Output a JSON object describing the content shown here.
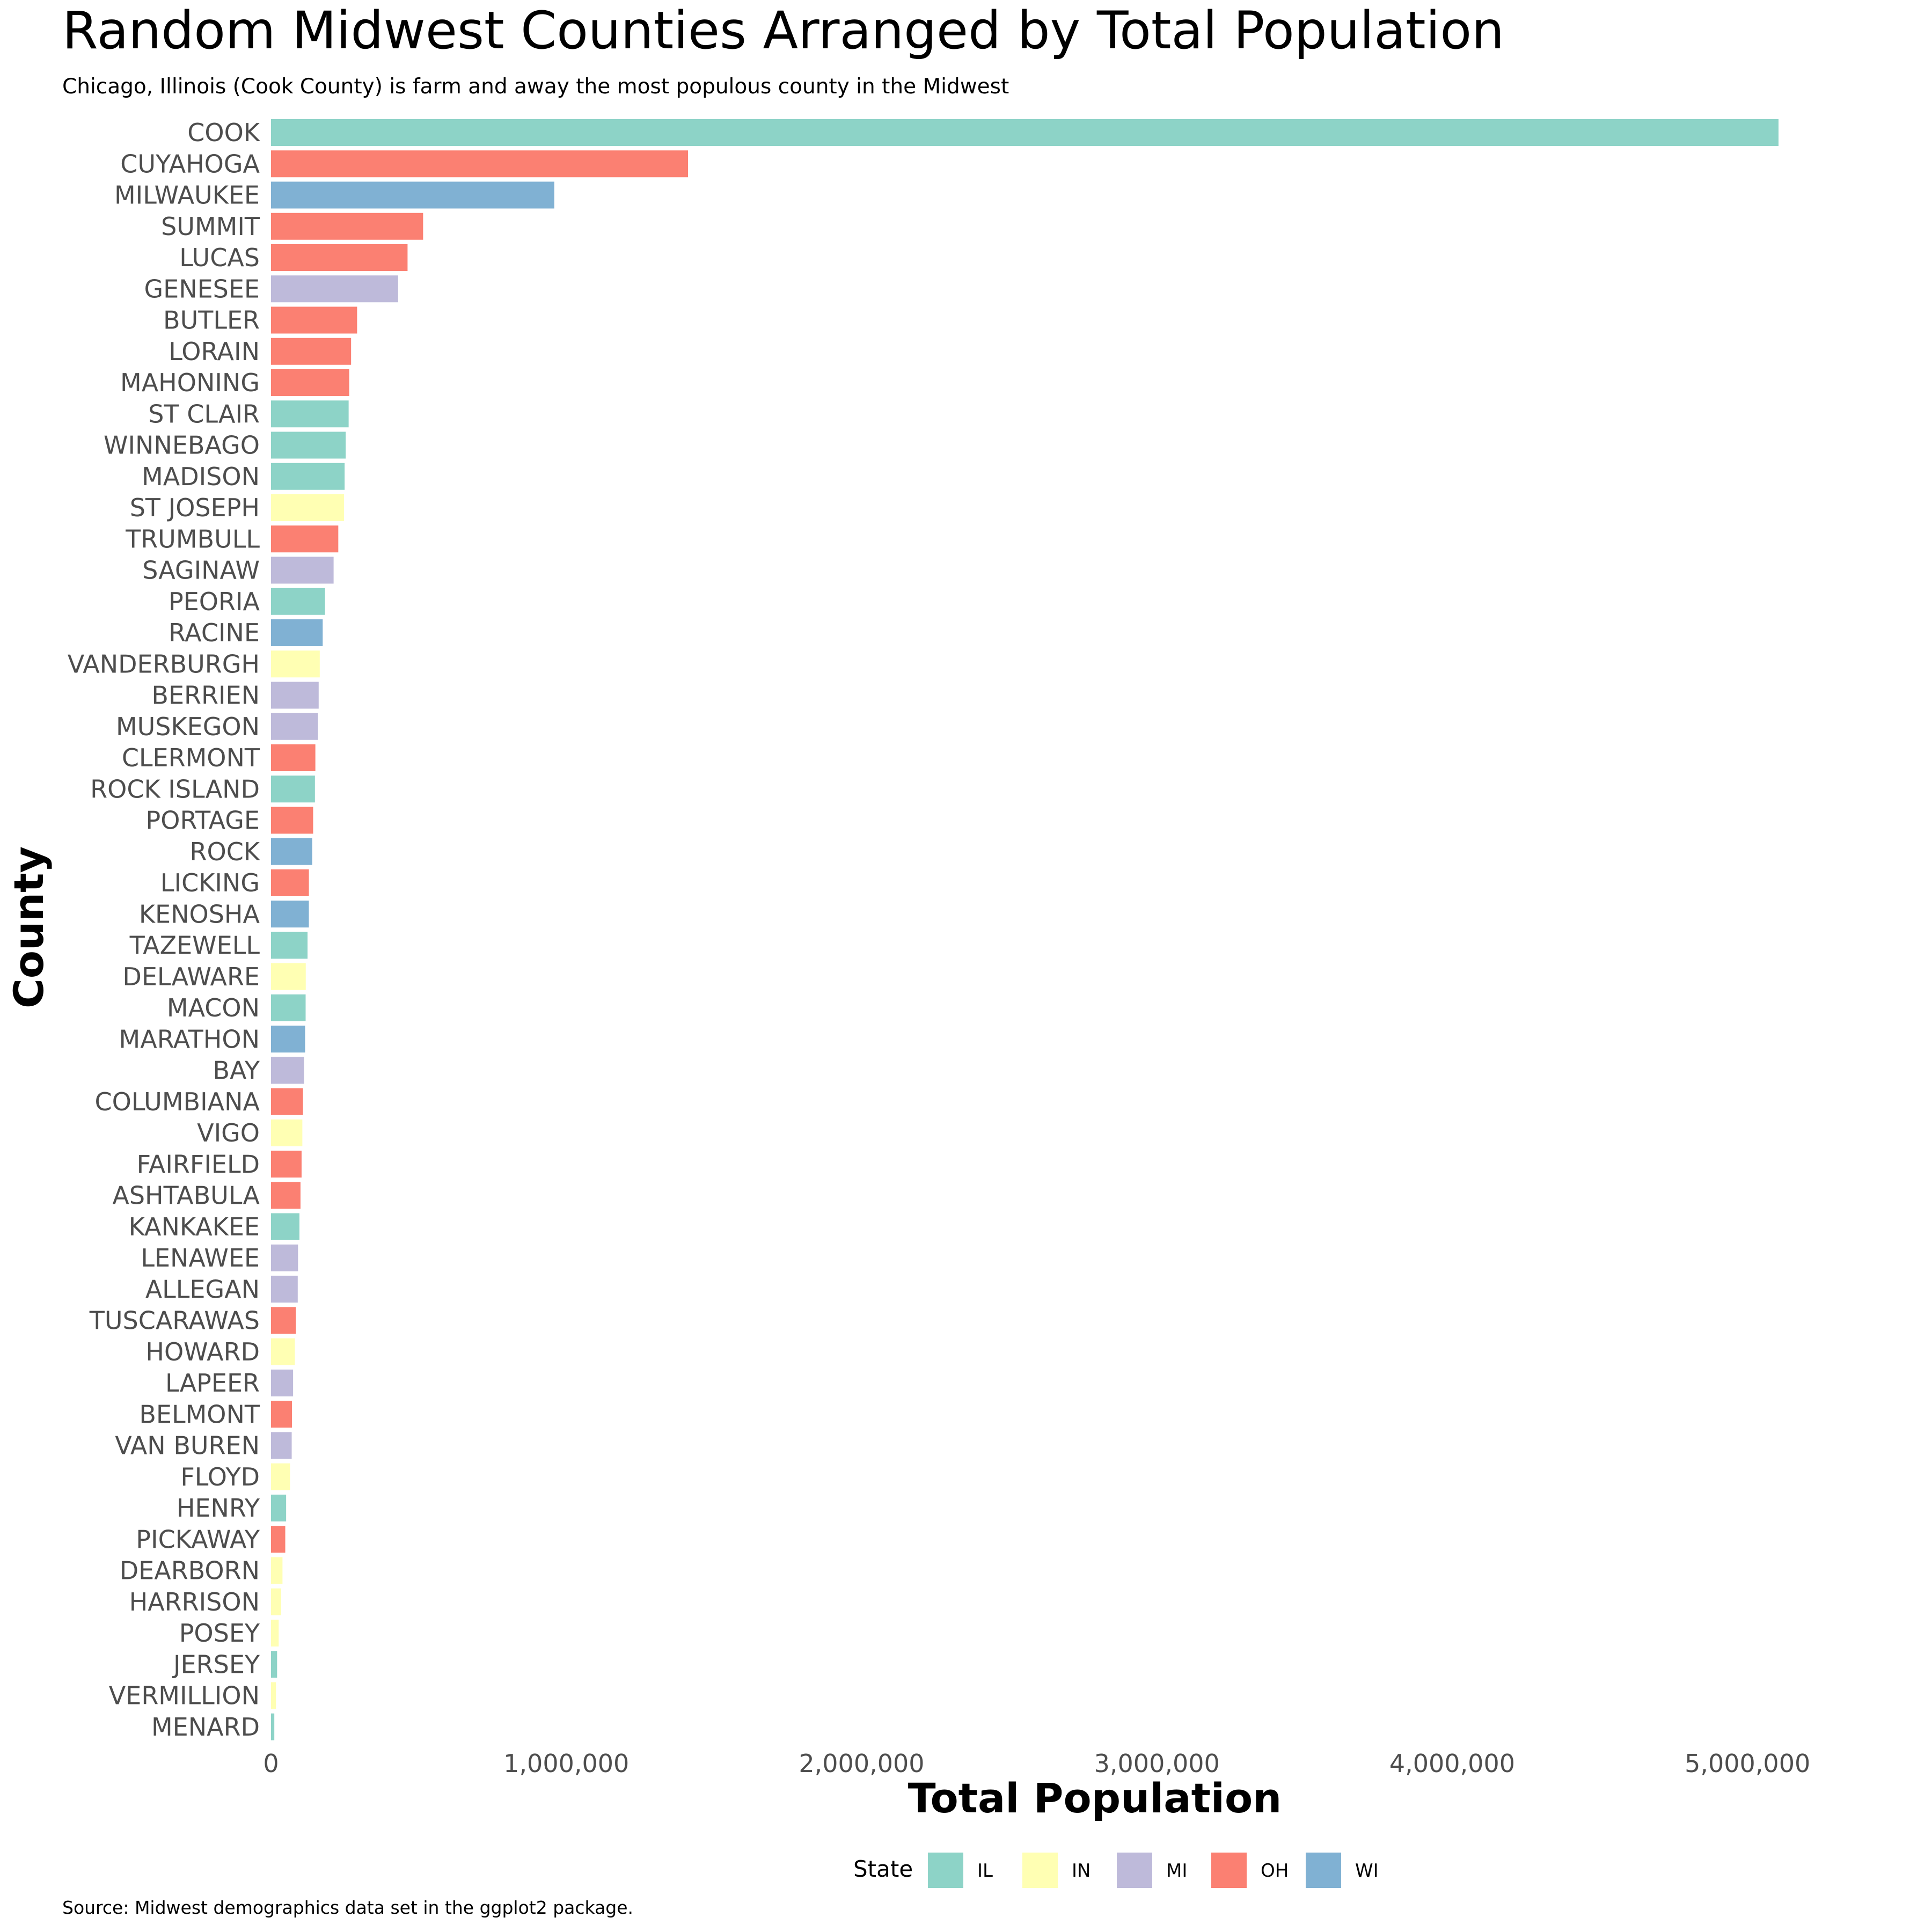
{
  "chart_data": {
    "type": "bar",
    "orientation": "horizontal",
    "title": "Random Midwest Counties Arranged by Total Population",
    "subtitle": "Chicago, Illinois (Cook County) is farm and away the most populous county in the Midwest",
    "xlabel": "Total Population",
    "ylabel": "County",
    "caption": "Source: Midwest demographics data set in the ggplot2 package.",
    "xlim": [
      0,
      5105067
    ],
    "x_ticks": [
      0,
      1000000,
      2000000,
      3000000,
      4000000,
      5000000
    ],
    "x_tick_labels": [
      "0",
      "1,000,000",
      "2,000,000",
      "3,000,000",
      "4,000,000",
      "5,000,000"
    ],
    "grid": false,
    "legend": {
      "title": "State",
      "position": "bottom",
      "entries": [
        {
          "key": "IL",
          "label": "IL",
          "color": "#8DD3C7"
        },
        {
          "key": "IN",
          "label": "IN",
          "color": "#FFFFB3"
        },
        {
          "key": "MI",
          "label": "MI",
          "color": "#BEBADA"
        },
        {
          "key": "OH",
          "label": "OH",
          "color": "#FB8072"
        },
        {
          "key": "WI",
          "label": "WI",
          "color": "#80B1D3"
        }
      ]
    },
    "categories": [
      "COOK",
      "CUYAHOGA",
      "MILWAUKEE",
      "SUMMIT",
      "LUCAS",
      "GENESEE",
      "BUTLER",
      "LORAIN",
      "MAHONING",
      "ST CLAIR",
      "WINNEBAGO",
      "MADISON",
      "ST JOSEPH",
      "TRUMBULL",
      "SAGINAW",
      "PEORIA",
      "RACINE",
      "VANDERBURGH",
      "BERRIEN",
      "MUSKEGON",
      "CLERMONT",
      "ROCK ISLAND",
      "PORTAGE",
      "ROCK",
      "LICKING",
      "KENOSHA",
      "TAZEWELL",
      "DELAWARE",
      "MACON",
      "MARATHON",
      "BAY",
      "COLUMBIANA",
      "VIGO",
      "FAIRFIELD",
      "ASHTABULA",
      "KANKAKEE",
      "LENAWEE",
      "ALLEGAN",
      "TUSCARAWAS",
      "HOWARD",
      "LAPEER",
      "BELMONT",
      "VAN BUREN",
      "FLOYD",
      "HENRY",
      "PICKAWAY",
      "DEARBORN",
      "HARRISON",
      "POSEY",
      "JERSEY",
      "VERMILLION",
      "MENARD"
    ],
    "values": [
      5105067,
      1412140,
      959275,
      514990,
      462361,
      430459,
      291479,
      271126,
      264806,
      262852,
      252913,
      249238,
      247052,
      227813,
      211946,
      182827,
      175034,
      165058,
      161378,
      158983,
      150187,
      148723,
      142585,
      139510,
      128300,
      128181,
      123692,
      117671,
      117206,
      115400,
      111723,
      108276,
      106107,
      103461,
      99821,
      96255,
      91476,
      90509,
      84090,
      80827,
      74768,
      71074,
      70060,
      64404,
      51159,
      48255,
      38835,
      34325,
      25968,
      20539,
      16773,
      11164
    ],
    "states": [
      "IL",
      "OH",
      "WI",
      "OH",
      "OH",
      "MI",
      "OH",
      "OH",
      "OH",
      "IL",
      "IL",
      "IL",
      "IN",
      "OH",
      "MI",
      "IL",
      "WI",
      "IN",
      "MI",
      "MI",
      "OH",
      "IL",
      "OH",
      "WI",
      "OH",
      "WI",
      "IL",
      "IN",
      "IL",
      "WI",
      "MI",
      "OH",
      "IN",
      "OH",
      "OH",
      "IL",
      "MI",
      "MI",
      "OH",
      "IN",
      "MI",
      "OH",
      "MI",
      "IN",
      "IL",
      "OH",
      "IN",
      "IN",
      "IN",
      "IL",
      "IN",
      "IL"
    ]
  }
}
